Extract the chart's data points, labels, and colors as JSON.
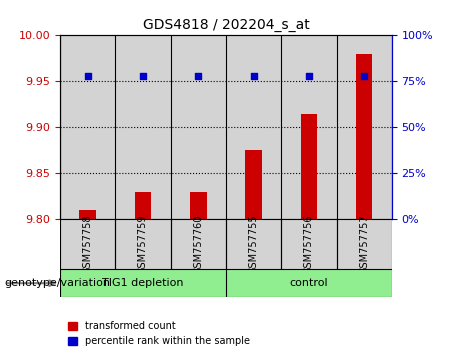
{
  "title": "GDS4818 / 202204_s_at",
  "samples": [
    "GSM757758",
    "GSM757759",
    "GSM757760",
    "GSM757755",
    "GSM757756",
    "GSM757757"
  ],
  "groups": [
    "TIG1 depletion",
    "TIG1 depletion",
    "TIG1 depletion",
    "control",
    "control",
    "control"
  ],
  "group_labels": [
    "TIG1 depletion",
    "control"
  ],
  "group_colors": [
    "#90ee90",
    "#90ee90"
  ],
  "transformed_count": [
    9.81,
    9.83,
    9.83,
    9.875,
    9.915,
    9.98
  ],
  "percentile_rank": [
    78,
    78,
    78,
    78,
    78,
    78
  ],
  "ylim_left": [
    9.8,
    10.0
  ],
  "ylim_right": [
    0,
    100
  ],
  "yticks_left": [
    9.8,
    9.85,
    9.9,
    9.95,
    10.0
  ],
  "yticks_right": [
    0,
    25,
    50,
    75,
    100
  ],
  "bar_color": "#cc0000",
  "dot_color": "#0000cc",
  "bar_bottom": 9.8,
  "background_color": "#ffffff",
  "panel_bg": "#d3d3d3",
  "group1_color": "#90EE90",
  "group2_color": "#90EE90",
  "legend_red_label": "transformed count",
  "legend_blue_label": "percentile rank within the sample",
  "xlabel_label": "genotype/variation"
}
